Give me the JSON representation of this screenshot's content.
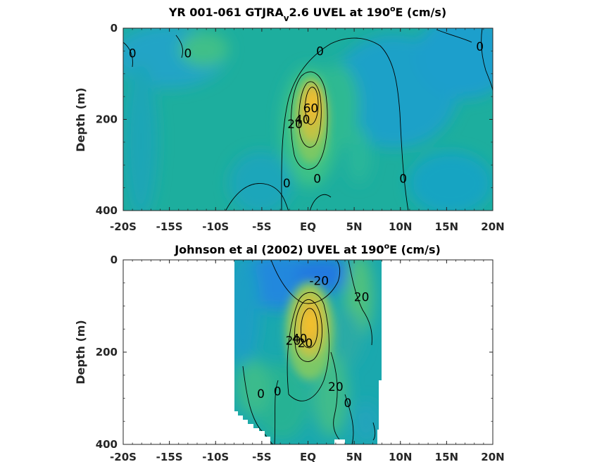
{
  "chart_data": [
    {
      "type": "heatmap",
      "title_prefix": "YR 001-061 GTJRA",
      "title_sub": "v",
      "title_mid": "2.6 UVEL at 190",
      "title_sup": "o",
      "title_suffix": "E (cm/s)",
      "ylabel": "Depth (m)",
      "xlabel": "",
      "x_ticks": [
        "-20S",
        "-15S",
        "-10S",
        "-5S",
        "EQ",
        "5N",
        "10N",
        "15N",
        "20N"
      ],
      "y_ticks": [
        "0",
        "200",
        "400"
      ],
      "xlim": [
        -20,
        20
      ],
      "ylim": [
        0,
        400
      ],
      "y_reversed": true,
      "data_extent": [
        -20,
        20
      ],
      "jet_core": {
        "lat": 0.3,
        "depth": 160,
        "max_cms": 65
      },
      "contour_labels": [
        {
          "text": "0",
          "lat": -19,
          "depth": 55
        },
        {
          "text": "0",
          "lat": -13,
          "depth": 55
        },
        {
          "text": "0",
          "lat": 1.3,
          "depth": 50
        },
        {
          "text": "0",
          "lat": 18.6,
          "depth": 40
        },
        {
          "text": "60",
          "lat": 0.3,
          "depth": 175
        },
        {
          "text": "40",
          "lat": -0.6,
          "depth": 200
        },
        {
          "text": "20",
          "lat": -1.4,
          "depth": 210
        },
        {
          "text": "0",
          "lat": -2.3,
          "depth": 340
        },
        {
          "text": "0",
          "lat": 1.0,
          "depth": 330
        },
        {
          "text": "0",
          "lat": 10.3,
          "depth": 330
        }
      ]
    },
    {
      "type": "heatmap",
      "title_prefix": "Johnson et al (2002) UVEL at 190",
      "title_sub": "",
      "title_mid": "",
      "title_sup": "o",
      "title_suffix": "E (cm/s)",
      "ylabel": "Depth (m)",
      "xlabel": "",
      "x_ticks": [
        "-20S",
        "-15S",
        "-10S",
        "-5S",
        "EQ",
        "5N",
        "10N",
        "15N",
        "20N"
      ],
      "y_ticks": [
        "0",
        "200",
        "400"
      ],
      "xlim": [
        -20,
        20
      ],
      "ylim": [
        0,
        400
      ],
      "y_reversed": true,
      "data_extent": [
        -8,
        8
      ],
      "jet_core": {
        "lat": 0.3,
        "depth": 150,
        "max_cms": 60
      },
      "contour_labels": [
        {
          "text": "-20",
          "lat": 1.2,
          "depth": 45
        },
        {
          "text": "20",
          "lat": 5.8,
          "depth": 80
        },
        {
          "text": "20",
          "lat": -1.6,
          "depth": 175
        },
        {
          "text": "40",
          "lat": -0.9,
          "depth": 170
        },
        {
          "text": "20",
          "lat": -0.3,
          "depth": 180
        },
        {
          "text": "0",
          "lat": -5.1,
          "depth": 290
        },
        {
          "text": "0",
          "lat": -3.3,
          "depth": 285
        },
        {
          "text": "20",
          "lat": 3.0,
          "depth": 275
        },
        {
          "text": "0",
          "lat": 4.3,
          "depth": 310
        }
      ]
    }
  ]
}
